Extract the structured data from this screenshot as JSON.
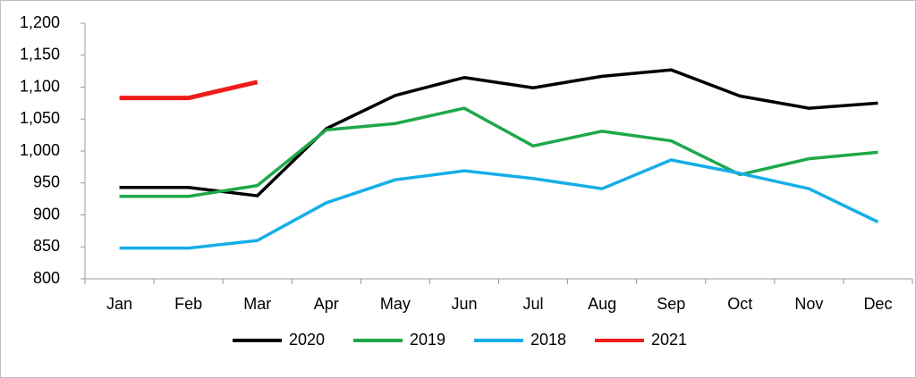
{
  "chart_data": {
    "type": "line",
    "categories": [
      "Jan",
      "Feb",
      "Mar",
      "Apr",
      "May",
      "Jun",
      "Jul",
      "Aug",
      "Sep",
      "Oct",
      "Nov",
      "Dec"
    ],
    "series": [
      {
        "name": "2020",
        "color": "#000000",
        "values": [
          943,
          943,
          930,
          1035,
          1087,
          1115,
          1099,
          1117,
          1127,
          1086,
          1067,
          1075
        ]
      },
      {
        "name": "2019",
        "color": "#1ea84a",
        "values": [
          929,
          929,
          946,
          1033,
          1043,
          1067,
          1008,
          1031,
          1016,
          963,
          988,
          998
        ]
      },
      {
        "name": "2018",
        "color": "#15aee8",
        "values": [
          848,
          848,
          860,
          919,
          955,
          969,
          957,
          941,
          986,
          965,
          941,
          889
        ]
      },
      {
        "name": "2021",
        "color": "#ee1c1c",
        "values": [
          1083,
          1083,
          1108,
          null,
          null,
          null,
          null,
          null,
          null,
          null,
          null,
          null
        ]
      }
    ],
    "ylim": [
      800,
      1200
    ],
    "yticks": [
      800,
      850,
      900,
      950,
      {
        "value": 1000,
        "label": "1,000"
      },
      {
        "value": 1050,
        "label": "1,050"
      },
      {
        "value": 1100,
        "label": "1,100"
      },
      {
        "value": 1150,
        "label": "1,150"
      },
      {
        "value": 1200,
        "label": "1,200"
      }
    ],
    "grid": false,
    "legend": "bottom"
  }
}
